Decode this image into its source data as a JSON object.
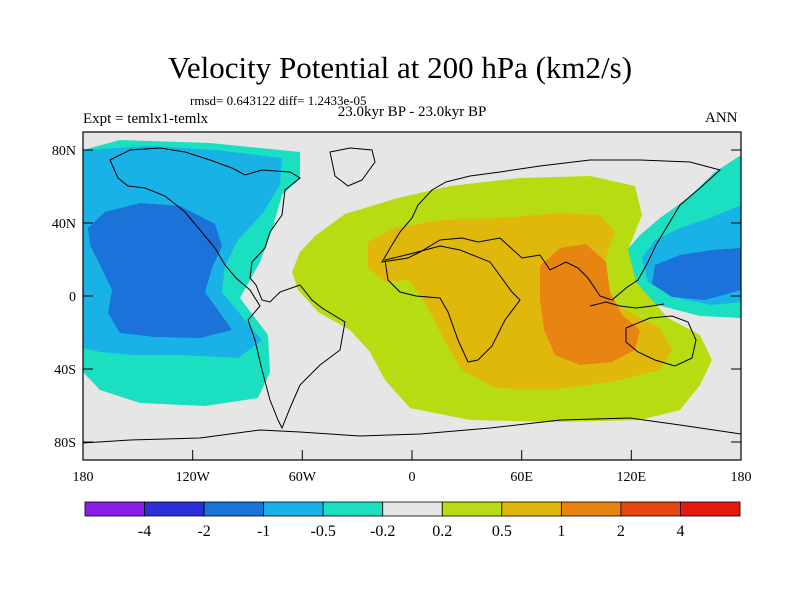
{
  "map": {
    "title": "Velocity Potential at 200 hPa (km2/s)",
    "stats": "rmsd= 0.643122 diff= 1.2433e-05",
    "left_label": "Expt = temlx1-temlx",
    "subtitle": "23.0kyr BP - 23.0kyr BP",
    "season": "ANN",
    "y_ticks": [
      "80N",
      "40N",
      "0",
      "40S",
      "80S"
    ],
    "x_ticks": [
      "180",
      "120W",
      "60W",
      "0",
      "60E",
      "120E",
      "180"
    ],
    "colorbar": {
      "colors": [
        "#8a1fe8",
        "#2b2fd9",
        "#1b72d8",
        "#19b2e6",
        "#1ae0c1",
        "#e6e6e6",
        "#b8dc12",
        "#e0b80c",
        "#e88412",
        "#e6460f",
        "#e41a10"
      ],
      "labels": [
        "-4",
        "-2",
        "-1",
        "-0.5",
        "-0.2",
        "0.2",
        "0.5",
        "1",
        "2",
        "4"
      ]
    }
  }
}
